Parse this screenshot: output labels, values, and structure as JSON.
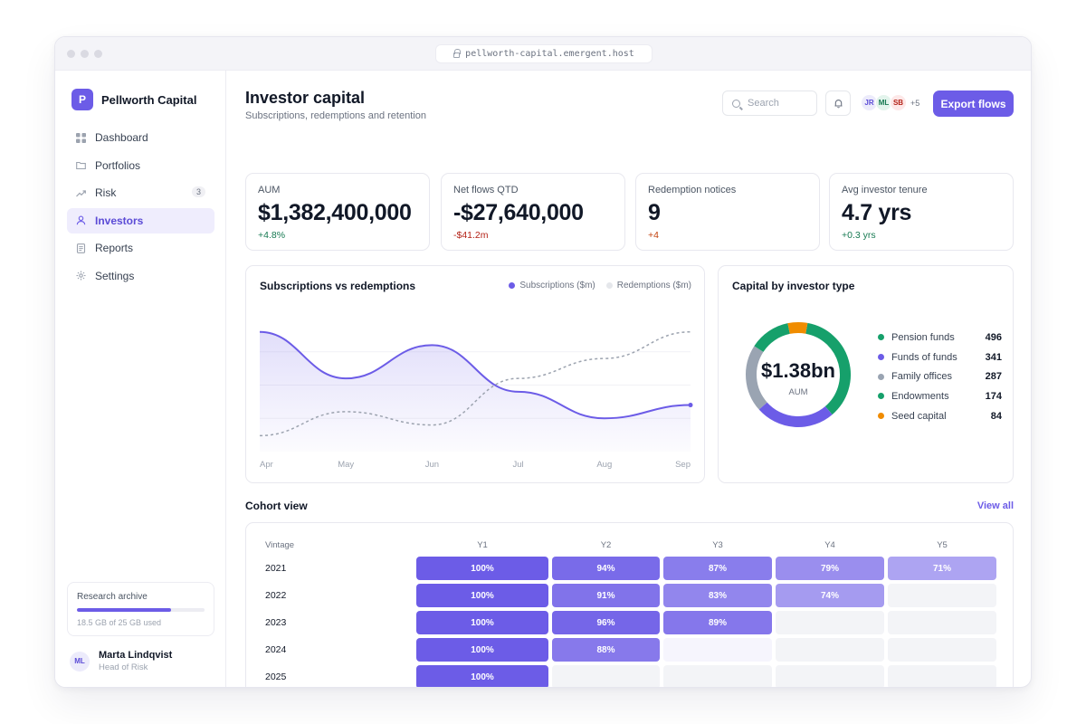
{
  "browser": {
    "url": "pellworth-capital.emergent.host"
  },
  "brand": {
    "logo_letter": "P",
    "name": "Pellworth Capital"
  },
  "nav": [
    {
      "label": "Dashboard",
      "icon": "grid-icon",
      "active": false,
      "badge": ""
    },
    {
      "label": "Portfolios",
      "icon": "folder-icon",
      "active": false,
      "badge": ""
    },
    {
      "label": "Risk",
      "icon": "trending-icon",
      "active": false,
      "badge": "3"
    },
    {
      "label": "Investors",
      "icon": "user-icon",
      "active": true,
      "badge": ""
    },
    {
      "label": "Reports",
      "icon": "document-icon",
      "active": false,
      "badge": ""
    },
    {
      "label": "Settings",
      "icon": "gear-icon",
      "active": false,
      "badge": ""
    }
  ],
  "archive": {
    "title": "Research archive",
    "used_fraction": 0.74,
    "meta": "18.5 GB of 25 GB used"
  },
  "user": {
    "initials": "ML",
    "name": "Marta Lindqvist",
    "role": "Head of Risk"
  },
  "header": {
    "title": "Investor capital",
    "subtitle": "Subscriptions, redemptions and retention",
    "search_placeholder": "Search",
    "avatars": [
      {
        "initials": "JR",
        "bg": "#ecebfb",
        "fg": "#5b4bd6"
      },
      {
        "initials": "ML",
        "bg": "#e3f4ec",
        "fg": "#177a52"
      },
      {
        "initials": "SB",
        "bg": "#fde8e8",
        "fg": "#b42318"
      }
    ],
    "avatars_more": "+5",
    "export_label": "Export flows"
  },
  "stats": [
    {
      "label": "AUM",
      "value": "$1,382,400,000",
      "delta": "+4.8%",
      "delta_color": "#177a52"
    },
    {
      "label": "Net flows QTD",
      "value": "-$27,640,000",
      "delta": "-$41.2m",
      "delta_color": "#b42318"
    },
    {
      "label": "Redemption notices",
      "value": "9",
      "delta": "+4",
      "delta_color": "#c2410c"
    },
    {
      "label": "Avg investor tenure",
      "value": "4.7 yrs",
      "delta": "+0.3 yrs",
      "delta_color": "#177a52"
    }
  ],
  "flows_card": {
    "title": "Subscriptions vs redemptions",
    "legend": [
      {
        "label": "Subscriptions ($m)",
        "color": "#6c5ce7"
      },
      {
        "label": "Redemptions ($m)",
        "color": "#e5e7eb"
      }
    ]
  },
  "chart_data": [
    {
      "type": "line",
      "title": "Subscriptions vs redemptions",
      "categories": [
        "Apr",
        "May",
        "Jun",
        "Jul",
        "Aug",
        "Sep"
      ],
      "ylim": [
        0,
        100
      ],
      "grid": true,
      "legend": "top-right",
      "series": [
        {
          "name": "Subscriptions ($m)",
          "color": "#6c5ce7",
          "style": "solid-area",
          "values": [
            90,
            55,
            80,
            45,
            25,
            35
          ]
        },
        {
          "name": "Redemptions ($m)",
          "color": "#9ca3af",
          "style": "dashed",
          "values": [
            12,
            30,
            20,
            55,
            70,
            90
          ]
        }
      ]
    },
    {
      "type": "pie",
      "title": "Capital by investor type",
      "center_value": "$1.38bn",
      "center_label": "AUM",
      "legend": "right",
      "slices": [
        {
          "label": "Pension funds",
          "value": 496,
          "color": "#16a06b"
        },
        {
          "label": "Funds of funds",
          "value": 341,
          "color": "#6c5ce7"
        },
        {
          "label": "Family offices",
          "value": 287,
          "color": "#9aa4b2"
        },
        {
          "label": "Endowments",
          "value": 174,
          "color": "#16a06b"
        },
        {
          "label": "Seed capital",
          "value": 84,
          "color": "#f08c00"
        }
      ]
    },
    {
      "type": "heatmap",
      "title": "Cohort view",
      "row_header": "Vintage",
      "columns": [
        "Y1",
        "Y2",
        "Y3",
        "Y4",
        "Y5"
      ],
      "rows": [
        {
          "label": "2021",
          "values": [
            100,
            94,
            87,
            79,
            71
          ]
        },
        {
          "label": "2022",
          "values": [
            100,
            91,
            83,
            74,
            null
          ]
        },
        {
          "label": "2023",
          "values": [
            100,
            96,
            89,
            null,
            null
          ]
        },
        {
          "label": "2024",
          "values": [
            100,
            88,
            null,
            null,
            null
          ]
        },
        {
          "label": "2025",
          "values": [
            100,
            null,
            null,
            null,
            null
          ]
        }
      ],
      "value_suffix": "%"
    }
  ],
  "cohort_card": {
    "title": "Cohort view",
    "view_all": "View all"
  }
}
